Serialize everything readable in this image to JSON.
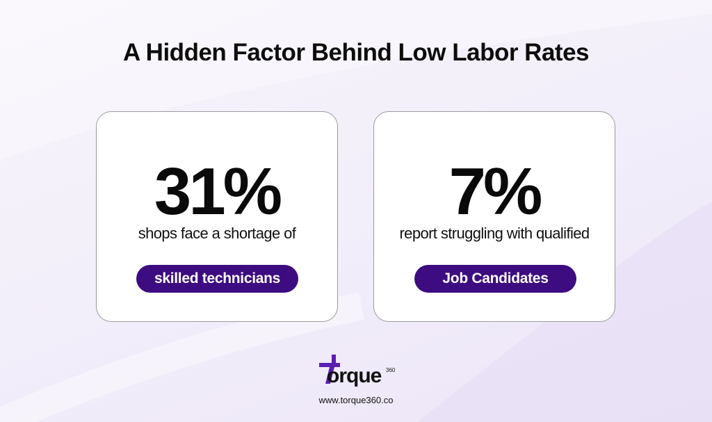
{
  "title": "A Hidden Factor Behind Low Labor Rates",
  "cards": [
    {
      "stat": "31%",
      "description": "shops face a shortage of",
      "tag": "skilled technicians"
    },
    {
      "stat": "7%",
      "description": "report struggling with qualified",
      "tag": "Job Candidates"
    }
  ],
  "footer": {
    "brand": "orque",
    "brand_superscript": "360",
    "url": "www.torque360.co"
  }
}
